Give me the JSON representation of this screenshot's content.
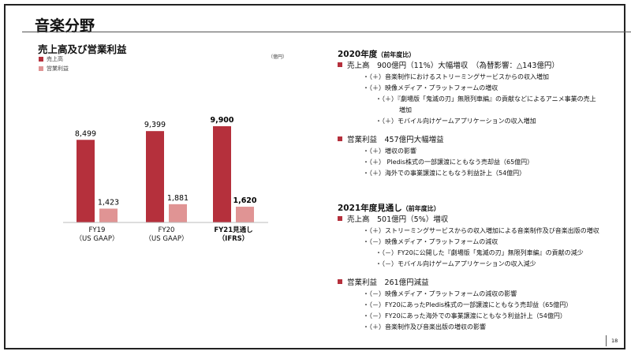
{
  "slide": {
    "title": "音楽分野",
    "page_number": "18"
  },
  "chart_data": {
    "type": "bar",
    "title": "売上高及び営業利益",
    "unit": "（億円）",
    "categories": [
      [
        "FY19",
        "（US GAAP）"
      ],
      [
        "FY20",
        "（US GAAP）"
      ],
      [
        "FY21見通し",
        "（IFRS）"
      ]
    ],
    "series": [
      {
        "name": "売上高",
        "color": "#b5303c",
        "values": [
          8499,
          9399,
          9900
        ],
        "labels": [
          "8,499",
          "9,399",
          "9,900"
        ]
      },
      {
        "name": "営業利益",
        "color": "#e09494",
        "values": [
          1423,
          1881,
          1620
        ],
        "labels": [
          "1,423",
          "1,881",
          "1,620"
        ]
      }
    ],
    "ylim": [
      0,
      10000
    ],
    "grid": false,
    "legend": "top-left",
    "bold_category_index": 2
  },
  "fy2020": {
    "heading": "2020年度",
    "heading_note": "（前年度比）",
    "sales": "売上高　900億円（11%）大幅増収　（為替影響：△143億円）",
    "sales_items": [
      {
        "level": 2,
        "text": "・（＋）音楽制作におけるストリーミングサービスからの収入増加"
      },
      {
        "level": 2,
        "text": "・（＋）映像メディア・プラットフォームの増収"
      },
      {
        "level": 3,
        "text": "・（＋）『劇場版「鬼滅の刃」無限列車編』の貢献などによるアニメ事業の売上"
      },
      {
        "level": 4,
        "text": "増加"
      },
      {
        "level": 3,
        "text": "・（＋）モバイル向けゲームアプリケーションの収入増加"
      }
    ],
    "profit": "営業利益　457億円大幅増益",
    "profit_items": [
      "・（＋）増収の影響",
      "・（＋） Pledis株式の一部譲渡にともなう売却益（65億円）",
      "・（＋）海外での事業譲渡にともなう利益計上（54億円）"
    ]
  },
  "fy2021": {
    "heading": "2021年度見通し",
    "heading_note": "（前年度比）",
    "sales": "売上高　501億円（5%）増収",
    "sales_items": [
      {
        "level": 2,
        "text": "・（＋）ストリーミングサービスからの収入増加による音楽制作及び音楽出版の増収"
      },
      {
        "level": 2,
        "text": "・（－）映像メディア・プラットフォームの減収"
      },
      {
        "level": 3,
        "text": "・（－）FY20に公開した『劇場版「鬼滅の刃」無限列車編』の貢献の減少"
      },
      {
        "level": 3,
        "text": "・（－）モバイル向けゲームアプリケーションの収入減少"
      }
    ],
    "profit": "営業利益　261億円減益",
    "profit_items": [
      "・（－）映像メディア・プラットフォームの減収の影響",
      "・（－）FY20にあったPledis株式の一部譲渡にともなう売却益（65億円）",
      "・（－）FY20にあった海外での事業譲渡にともなう利益計上（54億円）",
      "・（＋）音楽制作及び音楽出版の増収の影響"
    ]
  }
}
